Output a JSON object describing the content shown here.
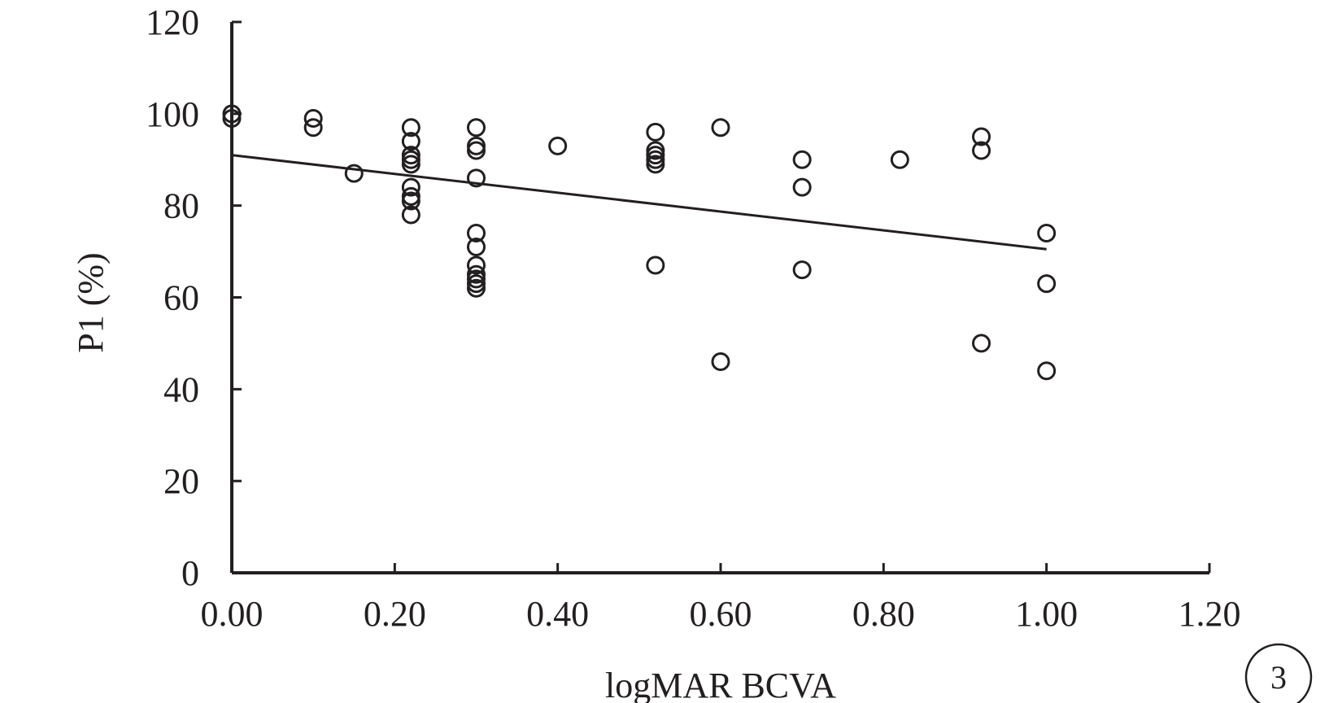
{
  "chart_data": {
    "type": "scatter",
    "xlabel": "logMAR BCVA",
    "ylabel": "P1 (%)",
    "xlim": [
      0,
      1.2
    ],
    "ylim": [
      0,
      120
    ],
    "x_ticks": [
      "0.00",
      "0.20",
      "0.40",
      "0.60",
      "0.80",
      "1.00",
      "1.20"
    ],
    "y_ticks": [
      "0",
      "20",
      "40",
      "60",
      "80",
      "100",
      "120"
    ],
    "panel_label": "3",
    "grid": false,
    "legend": "none",
    "points": [
      {
        "x": 0.0,
        "y": 100
      },
      {
        "x": 0.0,
        "y": 99
      },
      {
        "x": 0.1,
        "y": 99
      },
      {
        "x": 0.1,
        "y": 97
      },
      {
        "x": 0.15,
        "y": 87
      },
      {
        "x": 0.22,
        "y": 97
      },
      {
        "x": 0.22,
        "y": 94
      },
      {
        "x": 0.22,
        "y": 91
      },
      {
        "x": 0.22,
        "y": 90
      },
      {
        "x": 0.22,
        "y": 89
      },
      {
        "x": 0.22,
        "y": 84
      },
      {
        "x": 0.22,
        "y": 82
      },
      {
        "x": 0.22,
        "y": 81
      },
      {
        "x": 0.22,
        "y": 78
      },
      {
        "x": 0.3,
        "y": 97
      },
      {
        "x": 0.3,
        "y": 93
      },
      {
        "x": 0.3,
        "y": 92
      },
      {
        "x": 0.3,
        "y": 86
      },
      {
        "x": 0.3,
        "y": 74
      },
      {
        "x": 0.3,
        "y": 71
      },
      {
        "x": 0.3,
        "y": 67
      },
      {
        "x": 0.3,
        "y": 65
      },
      {
        "x": 0.3,
        "y": 64
      },
      {
        "x": 0.3,
        "y": 63
      },
      {
        "x": 0.3,
        "y": 62
      },
      {
        "x": 0.4,
        "y": 93
      },
      {
        "x": 0.52,
        "y": 96
      },
      {
        "x": 0.52,
        "y": 92
      },
      {
        "x": 0.52,
        "y": 91
      },
      {
        "x": 0.52,
        "y": 90
      },
      {
        "x": 0.52,
        "y": 89
      },
      {
        "x": 0.52,
        "y": 67
      },
      {
        "x": 0.6,
        "y": 97
      },
      {
        "x": 0.6,
        "y": 46
      },
      {
        "x": 0.7,
        "y": 90
      },
      {
        "x": 0.7,
        "y": 84
      },
      {
        "x": 0.7,
        "y": 66
      },
      {
        "x": 0.82,
        "y": 90
      },
      {
        "x": 0.92,
        "y": 95
      },
      {
        "x": 0.92,
        "y": 92
      },
      {
        "x": 0.92,
        "y": 50
      },
      {
        "x": 1.0,
        "y": 74
      },
      {
        "x": 1.0,
        "y": 63
      },
      {
        "x": 1.0,
        "y": 44
      }
    ],
    "trendline": {
      "x": [
        0.0,
        1.0
      ],
      "y": [
        91,
        70.5
      ]
    }
  }
}
